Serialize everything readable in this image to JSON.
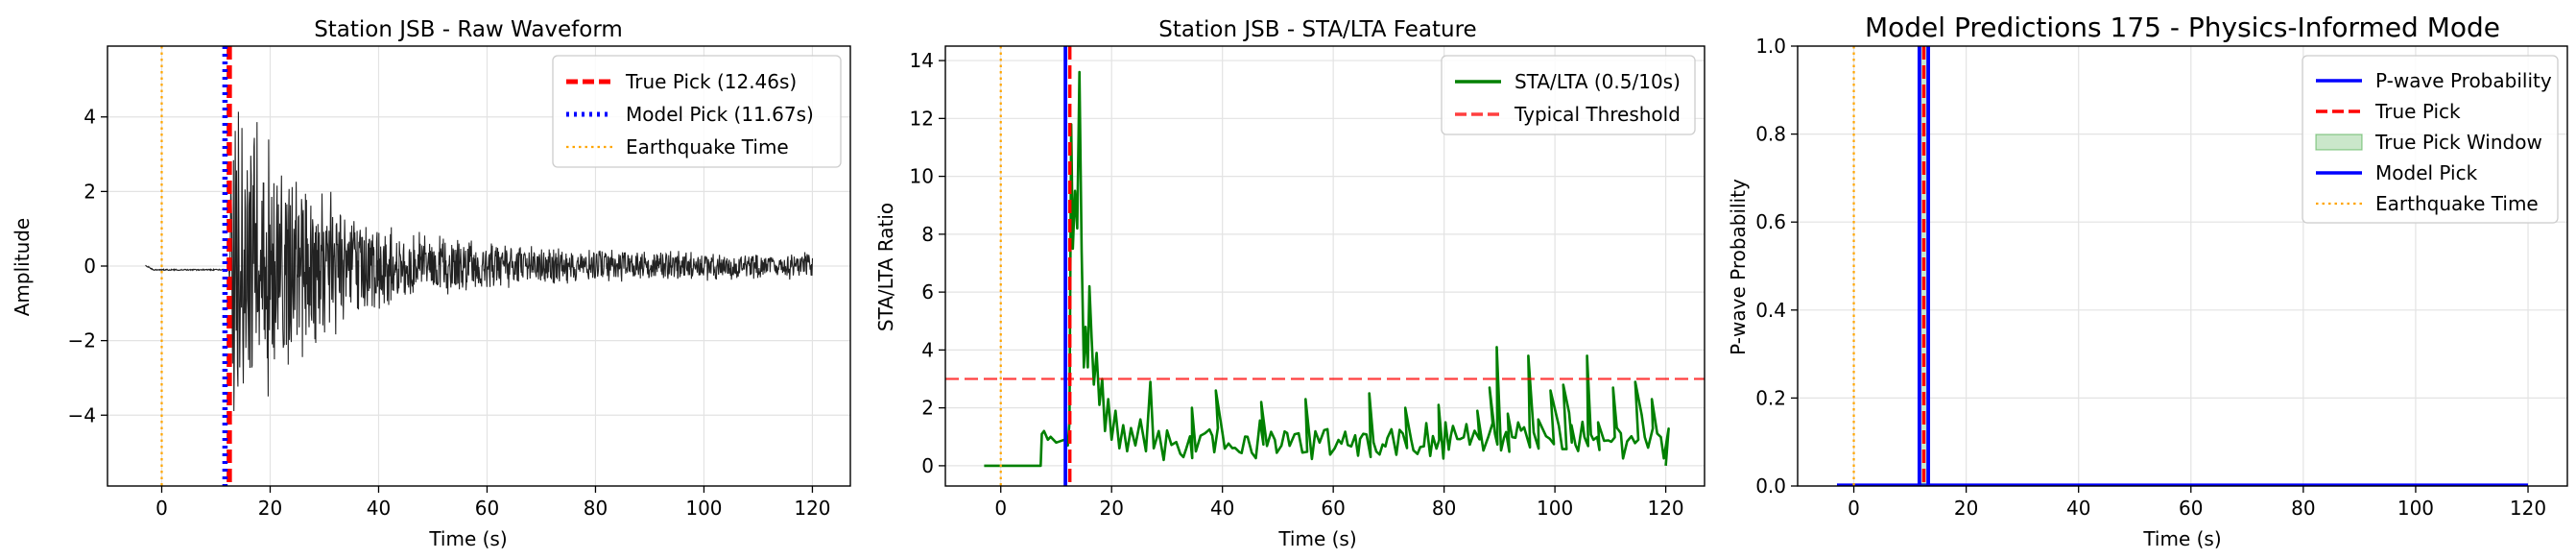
{
  "chart_data": [
    {
      "type": "line",
      "title": "Station JSB - Raw Waveform",
      "xlabel": "Time (s)",
      "ylabel": "Amplitude",
      "xlim": [
        -10,
        127
      ],
      "ylim": [
        -5.9,
        5.9
      ],
      "xticks": [
        0,
        20,
        40,
        60,
        80,
        100,
        120
      ],
      "yticks": [
        -4,
        -2,
        0,
        2,
        4
      ],
      "grid": true,
      "legend_position": "top-right",
      "series": [
        {
          "name": "Waveform",
          "kind": "waveform",
          "color": "#000000",
          "x_start": -3,
          "x_end": 120,
          "arrival": 12.46,
          "pre_level": -0.1,
          "peak_amplitude": 5.4,
          "tail_amplitude": 0.4
        },
        {
          "name": "True Pick (12.46s)",
          "kind": "vline",
          "x": 12.46,
          "color": "#ff0000",
          "style": "dashed"
        },
        {
          "name": "Model Pick (11.67s)",
          "kind": "vline",
          "x": 11.67,
          "color": "#0000ff",
          "style": "dotted"
        },
        {
          "name": "Earthquake Time",
          "kind": "vline",
          "x": 0,
          "color": "#ffa500",
          "style": "dotted"
        }
      ],
      "legend": [
        "True Pick (12.46s)",
        "Model Pick (11.67s)",
        "Earthquake Time"
      ]
    },
    {
      "type": "line",
      "title": "Station JSB - STA/LTA Feature",
      "xlabel": "Time (s)",
      "ylabel": "STA/LTA Ratio",
      "xlim": [
        -10,
        127
      ],
      "ylim": [
        -0.7,
        14.5
      ],
      "xticks": [
        0,
        20,
        40,
        60,
        80,
        100,
        120
      ],
      "yticks": [
        0,
        2,
        4,
        6,
        8,
        10,
        12,
        14
      ],
      "grid": true,
      "legend_position": "top-right",
      "series": [
        {
          "name": "STA/LTA (0.5/10s)",
          "kind": "stalta",
          "color": "#008000",
          "points": [
            [
              -3,
              0
            ],
            [
              4,
              0
            ],
            [
              7.2,
              0
            ],
            [
              7.4,
              1.1
            ],
            [
              7.8,
              1.2
            ],
            [
              8.5,
              0.9
            ],
            [
              9,
              1.0
            ],
            [
              10,
              0.8
            ],
            [
              11.5,
              0.9
            ],
            [
              12.1,
              0.7
            ],
            [
              12.4,
              1.5
            ],
            [
              12.7,
              11.8
            ],
            [
              13,
              7.5
            ],
            [
              13.4,
              9.5
            ],
            [
              13.8,
              8.2
            ],
            [
              14.2,
              13.6
            ],
            [
              14.6,
              7.4
            ],
            [
              15.0,
              3.4
            ],
            [
              15.3,
              4.8
            ],
            [
              15.7,
              3.4
            ],
            [
              16.0,
              6.2
            ],
            [
              16.4,
              4.4
            ],
            [
              16.8,
              2.8
            ],
            [
              17.3,
              3.9
            ],
            [
              17.8,
              2.1
            ],
            [
              18.3,
              3.0
            ],
            [
              18.8,
              1.2
            ],
            [
              19.4,
              2.3
            ],
            [
              20.0,
              0.9
            ],
            [
              20.7,
              1.9
            ],
            [
              21.4,
              0.6
            ],
            [
              22.1,
              1.4
            ],
            [
              22.8,
              0.5
            ],
            [
              23.5,
              1.3
            ],
            [
              24.3,
              0.7
            ],
            [
              25.2,
              1.6
            ],
            [
              26.2,
              0.5
            ],
            [
              27.0,
              2.9
            ],
            [
              27.6,
              0.6
            ],
            [
              28.5,
              1.2
            ],
            [
              29.4,
              0.2
            ]
          ],
          "tail_from": 29.4,
          "tail_to": 120,
          "spikes": [
            [
              34.5,
              2.0
            ],
            [
              38.8,
              2.6
            ],
            [
              47.0,
              2.2
            ],
            [
              55.0,
              2.3
            ],
            [
              66.5,
              2.5
            ],
            [
              73.0,
              2.0
            ],
            [
              79.0,
              2.1
            ],
            [
              86.0,
              1.9
            ],
            [
              88.2,
              2.7
            ],
            [
              89.5,
              4.1
            ],
            [
              91.5,
              1.8
            ],
            [
              95.2,
              3.8
            ],
            [
              97.0,
              1.6
            ],
            [
              99.2,
              2.6
            ],
            [
              101.5,
              2.8
            ],
            [
              103.0,
              1.4
            ],
            [
              105.8,
              3.8
            ],
            [
              107.8,
              1.5
            ],
            [
              110.5,
              2.7
            ],
            [
              114.5,
              2.9
            ],
            [
              117.5,
              2.3
            ]
          ]
        },
        {
          "name": "Typical Threshold",
          "kind": "hline",
          "y": 3,
          "color": "#ff0000",
          "style": "dashed"
        },
        {
          "name": "Model Pick",
          "kind": "vline",
          "x": 11.67,
          "color": "#0000ff",
          "style": "solid"
        },
        {
          "name": "True Pick",
          "kind": "vline",
          "x": 12.46,
          "color": "#ff0000",
          "style": "dashed"
        },
        {
          "name": "Earthquake Time",
          "kind": "vline",
          "x": 0,
          "color": "#ffa500",
          "style": "dotted"
        }
      ],
      "legend": [
        "STA/LTA (0.5/10s)",
        "Typical Threshold"
      ]
    },
    {
      "type": "line",
      "title": "Model Predictions 175 - Physics-Informed Mode",
      "xlabel": "Time (s)",
      "ylabel": "P-wave Probability",
      "xlim": [
        -10,
        127
      ],
      "ylim": [
        0,
        1
      ],
      "xticks": [
        0,
        20,
        40,
        60,
        80,
        100,
        120
      ],
      "yticks": [
        0.0,
        0.2,
        0.4,
        0.6,
        0.8,
        1.0
      ],
      "grid": true,
      "legend_position": "top-right",
      "series": [
        {
          "name": "P-wave Probability",
          "kind": "hseg",
          "x0": -3,
          "x1": 120,
          "y": 0.003,
          "color": "#0000ff"
        },
        {
          "name": "True Pick Window",
          "kind": "vspan",
          "x0": 11.46,
          "x1": 13.46,
          "color": "#2ca02c",
          "alpha": 0.25
        },
        {
          "name": "Model Pick",
          "kind": "vline",
          "x": 11.67,
          "color": "#0000ff",
          "style": "solid"
        },
        {
          "name": "Model Pick edge",
          "kind": "vline",
          "x": 13.25,
          "color": "#0000ff",
          "style": "solid"
        },
        {
          "name": "True Pick",
          "kind": "vline",
          "x": 12.46,
          "color": "#ff0000",
          "style": "dashed"
        },
        {
          "name": "Earthquake Time",
          "kind": "vline",
          "x": 0,
          "color": "#ffa500",
          "style": "dotted"
        }
      ],
      "legend": [
        "P-wave Probability",
        "True Pick",
        "True Pick Window",
        "Model Pick",
        "Earthquake Time"
      ]
    }
  ],
  "colors": {
    "grid": "#e3e3e3",
    "axes": "#000000",
    "waveform": "#222222",
    "stalta": "#008000",
    "threshold": "#ff0000",
    "true_pick": "#ff0000",
    "model_pick": "#0000ff",
    "earthquake": "#ffa500",
    "window": "#2ca02c"
  }
}
